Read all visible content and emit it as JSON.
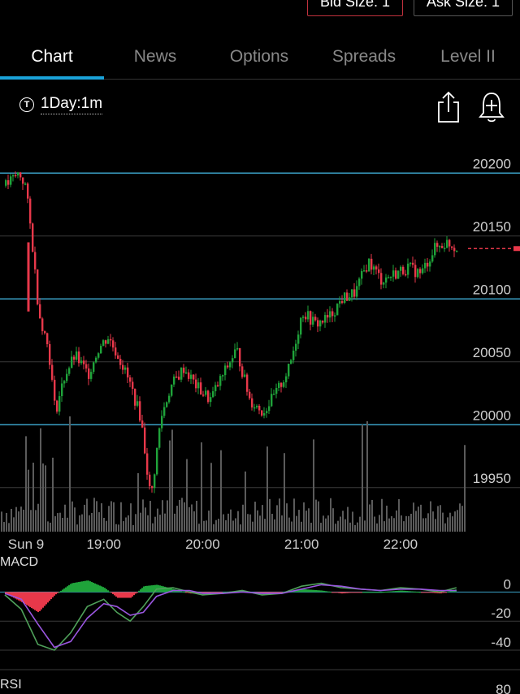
{
  "quotes": {
    "bid_size_label": "Bid Size: 1",
    "ask_size_label": "Ask Size: 1"
  },
  "tabs": [
    {
      "label": "Chart",
      "active": true
    },
    {
      "label": "News",
      "active": false
    },
    {
      "label": "Options",
      "active": false
    },
    {
      "label": "Spreads",
      "active": false
    },
    {
      "label": "Level II",
      "active": false
    }
  ],
  "toolbar": {
    "interval_icon_glyph": "T",
    "interval_label": "1Day:1m",
    "share_icon": "share-icon",
    "alert_icon": "bell-plus-icon"
  },
  "colors": {
    "accent": "#1aa2d9",
    "up": "#1fa33a",
    "down": "#e8384a",
    "volume": "#5b5b5b",
    "macd_line": "#4fa15a",
    "signal_line": "#9a56e0"
  },
  "chart_data": {
    "type": "candlestick",
    "price_axis_labels": [
      "20200",
      "20150",
      "20100",
      "20050",
      "20000",
      "19950"
    ],
    "price_range": [
      19915,
      20215
    ],
    "last_price": 20140,
    "x_axis_labels": [
      "Sun 9",
      "19:00",
      "20:00",
      "21:00",
      "22:00"
    ],
    "price_points": [
      [
        "18:00",
        20190
      ],
      [
        "18:08",
        20200
      ],
      [
        "18:12",
        20190
      ],
      [
        "18:16",
        20145
      ],
      [
        "18:20",
        20090
      ],
      [
        "18:26",
        20060
      ],
      [
        "18:30",
        20010
      ],
      [
        "18:36",
        20040
      ],
      [
        "18:42",
        20055
      ],
      [
        "18:50",
        20040
      ],
      [
        "18:56",
        20060
      ],
      [
        "19:02",
        20070
      ],
      [
        "19:10",
        20050
      ],
      [
        "19:16",
        20030
      ],
      [
        "19:22",
        20005
      ],
      [
        "19:28",
        19940
      ],
      [
        "19:34",
        20005
      ],
      [
        "19:40",
        20030
      ],
      [
        "19:48",
        20045
      ],
      [
        "19:56",
        20030
      ],
      [
        "20:04",
        20020
      ],
      [
        "20:12",
        20040
      ],
      [
        "20:20",
        20060
      ],
      [
        "20:28",
        20020
      ],
      [
        "20:36",
        20010
      ],
      [
        "20:44",
        20025
      ],
      [
        "20:52",
        20045
      ],
      [
        "21:00",
        20090
      ],
      [
        "21:08",
        20080
      ],
      [
        "21:16",
        20085
      ],
      [
        "21:24",
        20100
      ],
      [
        "21:32",
        20105
      ],
      [
        "21:40",
        20130
      ],
      [
        "21:48",
        20115
      ],
      [
        "21:56",
        20120
      ],
      [
        "22:04",
        20125
      ],
      [
        "22:12",
        20120
      ],
      [
        "22:20",
        20140
      ],
      [
        "22:28",
        20145
      ],
      [
        "22:34",
        20140
      ]
    ],
    "macd": {
      "axis_labels": [
        "0",
        "-20",
        "-40"
      ],
      "range": [
        -45,
        8
      ],
      "macd_points": [
        [
          "18:00",
          -2
        ],
        [
          "18:10",
          -12
        ],
        [
          "18:20",
          -36
        ],
        [
          "18:30",
          -40
        ],
        [
          "18:40",
          -28
        ],
        [
          "18:50",
          -10
        ],
        [
          "19:00",
          -5
        ],
        [
          "19:08",
          -14
        ],
        [
          "19:16",
          -20
        ],
        [
          "19:24",
          -10
        ],
        [
          "19:32",
          2
        ],
        [
          "19:42",
          3
        ],
        [
          "19:52",
          0
        ],
        [
          "20:00",
          -2
        ],
        [
          "20:12",
          -1
        ],
        [
          "20:24",
          1
        ],
        [
          "20:36",
          -2
        ],
        [
          "20:48",
          -1
        ],
        [
          "21:00",
          4
        ],
        [
          "21:12",
          6
        ],
        [
          "21:24",
          3
        ],
        [
          "21:36",
          2
        ],
        [
          "21:48",
          1
        ],
        [
          "22:00",
          3
        ],
        [
          "22:12",
          2
        ],
        [
          "22:24",
          0
        ],
        [
          "22:34",
          3
        ]
      ],
      "signal_points": [
        [
          "18:00",
          -1
        ],
        [
          "18:10",
          -5
        ],
        [
          "18:20",
          -22
        ],
        [
          "18:30",
          -38
        ],
        [
          "18:40",
          -34
        ],
        [
          "18:50",
          -18
        ],
        [
          "19:00",
          -8
        ],
        [
          "19:08",
          -10
        ],
        [
          "19:16",
          -16
        ],
        [
          "19:24",
          -14
        ],
        [
          "19:32",
          -3
        ],
        [
          "19:42",
          1
        ],
        [
          "19:52",
          1
        ],
        [
          "20:00",
          -1
        ],
        [
          "20:12",
          -1
        ],
        [
          "20:24",
          0
        ],
        [
          "20:36",
          -1
        ],
        [
          "20:48",
          -1
        ],
        [
          "21:00",
          2
        ],
        [
          "21:12",
          5
        ],
        [
          "21:24",
          4
        ],
        [
          "21:36",
          2
        ],
        [
          "21:48",
          1
        ],
        [
          "22:00",
          2
        ],
        [
          "22:12",
          2
        ],
        [
          "22:24",
          1
        ],
        [
          "22:34",
          1
        ]
      ]
    },
    "rsi": {
      "label": "RSI",
      "axis_labels": [
        "80"
      ]
    },
    "macd_label": "MACD"
  }
}
